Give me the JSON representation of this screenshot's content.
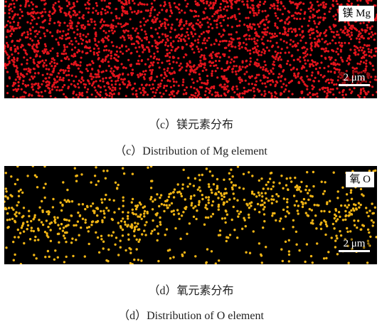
{
  "panels": [
    {
      "element_label": "镁 Mg",
      "scale_bar": "2 μm",
      "caption_cn": "（c）镁元素分布",
      "caption_en": "（c）Distribution of Mg element"
    },
    {
      "element_label": "氧 O",
      "scale_bar": "2 μm",
      "caption_cn": "（d）氧元素分布",
      "caption_en": "（d）Distribution of O element"
    }
  ]
}
